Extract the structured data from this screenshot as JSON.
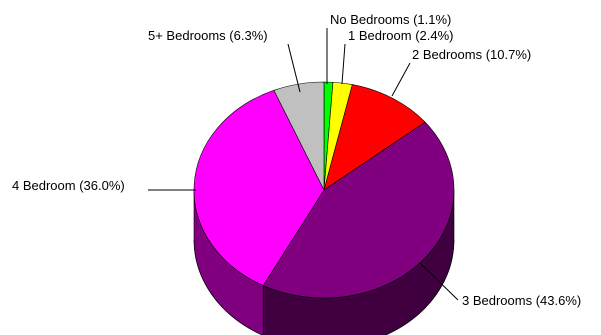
{
  "chart_data": {
    "type": "pie",
    "style": "3d",
    "slices": [
      {
        "label": "No Bedrooms (1.1%)",
        "name": "No Bedrooms",
        "value": 1.1,
        "color": "#00ff00",
        "side": "#008000"
      },
      {
        "label": "1 Bedroom (2.4%)",
        "name": "1 Bedroom",
        "value": 2.4,
        "color": "#ffff00",
        "side": "#808000"
      },
      {
        "label": "2 Bedrooms (10.7%)",
        "name": "2 Bedrooms",
        "value": 10.7,
        "color": "#ff0000",
        "side": "#800000"
      },
      {
        "label": "3 Bedrooms (43.6%)",
        "name": "3 Bedrooms",
        "value": 43.6,
        "color": "#800080",
        "side": "#400040"
      },
      {
        "label": "4 Bedroom (36.0%)",
        "name": "4 Bedroom",
        "value": 36.0,
        "color": "#ff00ff",
        "side": "#800080"
      },
      {
        "label": "5+ Bedrooms (6.3%)",
        "name": "5+ Bedrooms",
        "value": 6.3,
        "color": "#c0c0c0",
        "side": "#808080"
      }
    ]
  }
}
